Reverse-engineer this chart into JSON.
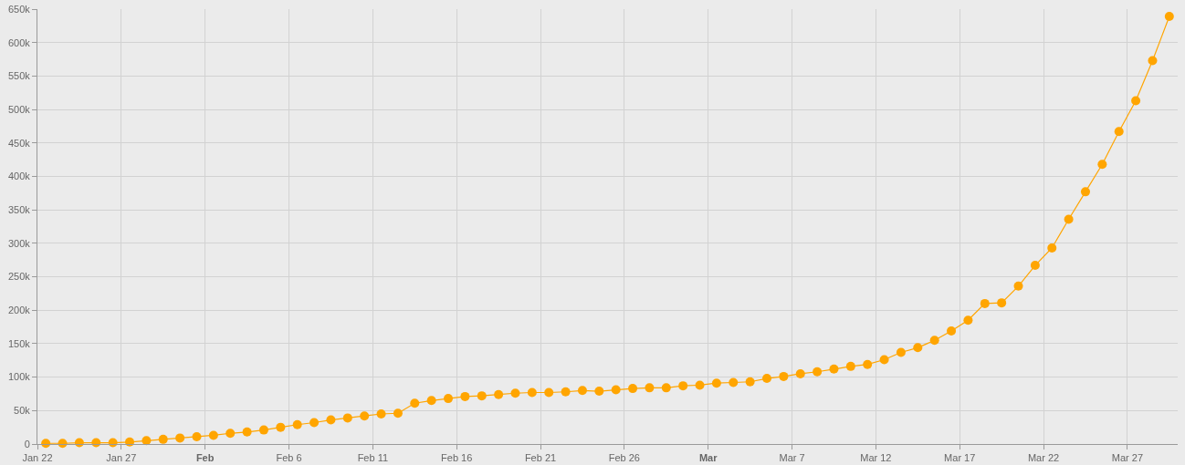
{
  "chart_data": {
    "type": "line",
    "x": [
      "--01-22T12:00",
      "--01-23T12:00",
      "--01-24T12:00",
      "--01-25T12:00",
      "--01-26T12:00",
      "--01-27T12:00",
      "--01-28T12:00",
      "--01-29T12:00",
      "--01-30T12:00",
      "--01-31T12:00",
      "--02-01T12:00",
      "--02-02T12:00",
      "--02-03T12:00",
      "--02-04T12:00",
      "--02-05T12:00",
      "--02-06T12:00",
      "--02-07T12:00",
      "--02-08T12:00",
      "--02-09T12:00",
      "--02-10T12:00",
      "--02-11T12:00",
      "--02-12T12:00",
      "--02-13T12:00",
      "--02-14T12:00",
      "--02-15T12:00",
      "--02-16T12:00",
      "--02-17T12:00",
      "--02-18T12:00",
      "--02-19T12:00",
      "--02-20T12:00",
      "--02-21T12:00",
      "--02-22T12:00",
      "--02-23T12:00",
      "--02-24T12:00",
      "--02-25T12:00",
      "--02-26T12:00",
      "--02-27T12:00",
      "--02-28T12:00",
      "--02-29T12:00",
      "--03-01T12:00",
      "--03-02T12:00",
      "--03-03T12:00",
      "--03-04T12:00",
      "--03-05T12:00",
      "--03-06T12:00",
      "--03-07T12:00",
      "--03-08T12:00",
      "--03-09T12:00",
      "--03-10T12:00",
      "--03-11T12:00",
      "--03-12T12:00",
      "--03-13T12:00",
      "--03-14T12:00",
      "--03-15T12:00",
      "--03-16T12:00",
      "--03-17T12:00",
      "--03-18T12:00",
      "--03-19T12:00",
      "--03-20T12:00",
      "--03-21T12:00",
      "--03-22T12:00",
      "--03-23T12:00",
      "--03-24T12:00",
      "--03-25T12:00",
      "--03-26T12:00",
      "--03-27T12:00",
      "--03-28T12:00",
      "--03-29T12:00"
    ],
    "series": [
      {
        "color": "#ffa500",
        "values": [
          1000,
          1000,
          2000,
          2000,
          2000,
          3000,
          5000,
          7000,
          9000,
          11000,
          13000,
          16000,
          18000,
          21000,
          25000,
          29000,
          32000,
          36000,
          39000,
          42000,
          45000,
          46000,
          61000,
          65000,
          68000,
          71000,
          72000,
          74000,
          76000,
          77000,
          77000,
          78000,
          80000,
          79000,
          81000,
          83000,
          84000,
          84000,
          87000,
          88000,
          91000,
          92000,
          93000,
          98000,
          101000,
          105000,
          108000,
          112000,
          116000,
          119000,
          126000,
          137000,
          144000,
          155000,
          169000,
          185000,
          210000,
          211000,
          236000,
          267000,
          293000,
          336000,
          377000,
          418000,
          467000,
          513000,
          573000,
          639000
        ]
      }
    ],
    "xlim": [
      "--01-22",
      "--03-30"
    ],
    "xticks": [
      {
        "value": "--01-22",
        "label": "Jan 22"
      },
      {
        "value": "--01-27",
        "label": "Jan 27"
      },
      {
        "value": "--02-01",
        "label": "Feb"
      },
      {
        "value": "--02-06",
        "label": "Feb 6"
      },
      {
        "value": "--02-11",
        "label": "Feb 11"
      },
      {
        "value": "--02-16",
        "label": "Feb 16"
      },
      {
        "value": "--02-21",
        "label": "Feb 21"
      },
      {
        "value": "--02-26",
        "label": "Feb 26"
      },
      {
        "value": "--03-02",
        "label": "Mar"
      },
      {
        "value": "--03-07",
        "label": "Mar 7"
      },
      {
        "value": "--03-12",
        "label": "Mar 12"
      },
      {
        "value": "--03-17",
        "label": "Mar 17"
      },
      {
        "value": "--03-22",
        "label": "Mar 22"
      },
      {
        "value": "--03-27",
        "label": "Mar 27"
      }
    ],
    "ylim": [
      0,
      650000
    ],
    "yticks": [
      0,
      {
        "value": 50000,
        "label": "50k"
      },
      {
        "value": 100000,
        "label": "100k"
      },
      {
        "value": 150000,
        "label": "150k"
      },
      {
        "value": 200000,
        "label": "200k"
      },
      {
        "value": 250000,
        "label": "250k"
      },
      {
        "value": 300000,
        "label": "300k"
      },
      {
        "value": 350000,
        "label": "350k"
      },
      {
        "value": 400000,
        "label": "400k"
      },
      {
        "value": 450000,
        "label": "450k"
      },
      {
        "value": 500000,
        "label": "500k"
      },
      {
        "value": 550000,
        "label": "550k"
      },
      {
        "value": 600000,
        "label": "600k"
      },
      {
        "value": 650000,
        "label": "650k"
      }
    ],
    "grid": true,
    "marker": "circle",
    "line_style": "solid"
  }
}
